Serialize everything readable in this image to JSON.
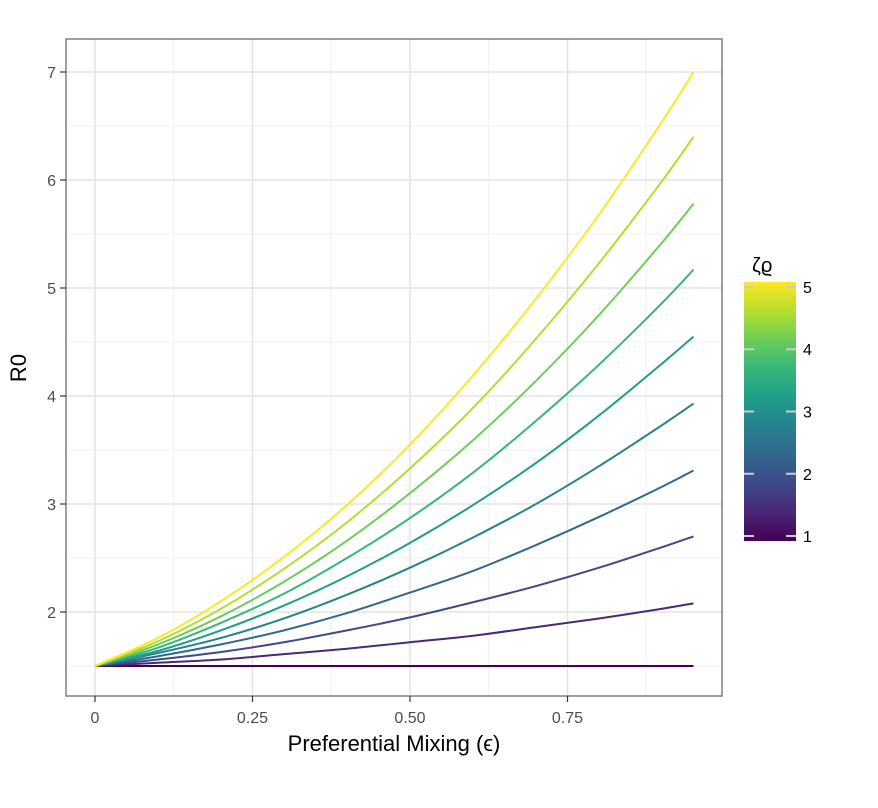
{
  "chart_data": {
    "type": "line",
    "title": "",
    "xlabel": "Preferential Mixing (ϵ)",
    "ylabel": "R0",
    "xlim": [
      -0.047,
      1.0
    ],
    "ylim": [
      1.2,
      7.3
    ],
    "x_ticks": [
      0,
      0.25,
      0.5,
      0.75
    ],
    "x_tick_labels": [
      "0",
      "0.25",
      "0.50",
      "0.75"
    ],
    "y_ticks": [
      2,
      3,
      4,
      5,
      6,
      7
    ],
    "y_tick_labels": [
      "2",
      "3",
      "4",
      "5",
      "6",
      "7"
    ],
    "grid": true,
    "x": [
      0,
      0.1,
      0.2,
      0.3,
      0.4,
      0.5,
      0.6,
      0.7,
      0.8,
      0.9,
      0.95
    ],
    "series": [
      {
        "zeta": 1.0,
        "color": "#440154",
        "values": [
          1.5,
          1.5,
          1.5,
          1.5,
          1.5,
          1.5,
          1.5,
          1.5,
          1.5,
          1.5,
          1.5
        ]
      },
      {
        "zeta": 1.44,
        "color": "#482878",
        "values": [
          1.5,
          1.53,
          1.56,
          1.61,
          1.66,
          1.72,
          1.78,
          1.86,
          1.94,
          2.03,
          2.08
        ]
      },
      {
        "zeta": 1.89,
        "color": "#3E4A89",
        "values": [
          1.5,
          1.56,
          1.63,
          1.72,
          1.83,
          1.95,
          2.09,
          2.24,
          2.41,
          2.6,
          2.7
        ]
      },
      {
        "zeta": 2.33,
        "color": "#31688E",
        "values": [
          1.5,
          1.59,
          1.7,
          1.83,
          1.99,
          2.18,
          2.38,
          2.62,
          2.88,
          3.16,
          3.31
        ]
      },
      {
        "zeta": 2.78,
        "color": "#26828E",
        "values": [
          1.5,
          1.62,
          1.76,
          1.94,
          2.16,
          2.41,
          2.69,
          3.0,
          3.35,
          3.73,
          3.93
        ]
      },
      {
        "zeta": 3.22,
        "color": "#1F9E89",
        "values": [
          1.5,
          1.64,
          1.83,
          2.06,
          2.33,
          2.64,
          2.99,
          3.38,
          3.82,
          4.3,
          4.55
        ]
      },
      {
        "zeta": 3.67,
        "color": "#35B779",
        "values": [
          1.5,
          1.67,
          1.9,
          2.17,
          2.5,
          2.87,
          3.29,
          3.77,
          4.29,
          4.86,
          5.17
        ]
      },
      {
        "zeta": 4.11,
        "color": "#6DCD59",
        "values": [
          1.5,
          1.7,
          1.96,
          2.28,
          2.66,
          3.1,
          3.59,
          4.14,
          4.75,
          5.42,
          5.78
        ]
      },
      {
        "zeta": 4.56,
        "color": "#B4DE2C",
        "values": [
          1.5,
          1.73,
          2.03,
          2.4,
          2.83,
          3.33,
          3.89,
          4.53,
          5.23,
          5.99,
          6.4
        ]
      },
      {
        "zeta": 5.0,
        "color": "#FDE725",
        "values": [
          1.5,
          1.76,
          2.1,
          2.51,
          2.99,
          3.55,
          4.19,
          4.9,
          5.68,
          6.54,
          7.0
        ]
      }
    ],
    "legend": {
      "title": "ζϱ",
      "type": "colorbar",
      "placement": "right",
      "range": [
        0.92,
        5.08
      ],
      "ticks": [
        1,
        2,
        3,
        4,
        5
      ],
      "tick_labels": [
        "1",
        "2",
        "3",
        "4",
        "5"
      ],
      "colors": [
        "#440154",
        "#482878",
        "#3E4A89",
        "#31688E",
        "#26828E",
        "#1F9E89",
        "#35B779",
        "#6DCD59",
        "#B4DE2C",
        "#FDE725"
      ]
    }
  }
}
